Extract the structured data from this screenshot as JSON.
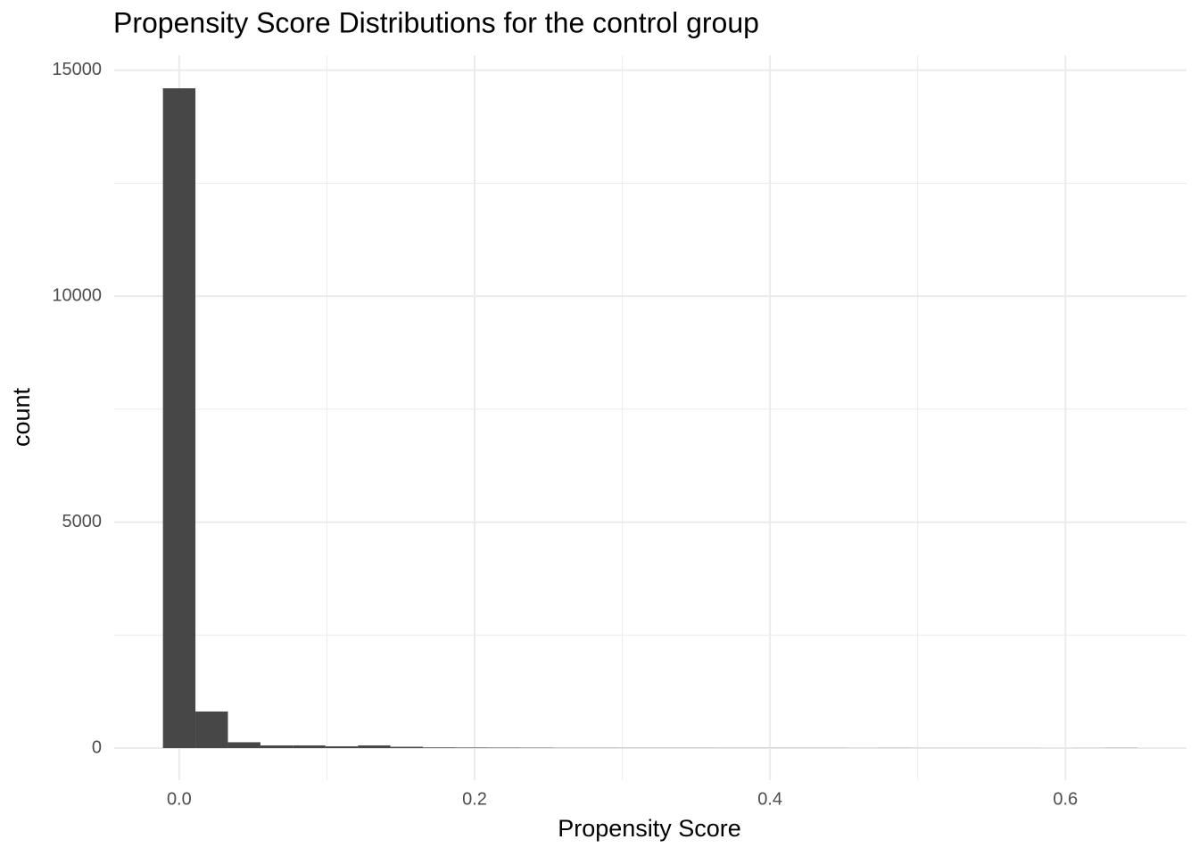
{
  "chart_data": {
    "type": "histogram",
    "title": "Propensity Score Distributions for the control group",
    "x_label": "Propensity Score",
    "y_label": "count",
    "bins": [
      -0.011,
      0.011,
      0.033,
      0.055,
      0.077,
      0.099,
      0.121,
      0.143,
      0.165,
      0.187,
      0.209,
      0.231,
      0.253,
      0.275,
      0.297,
      0.319,
      0.341,
      0.363,
      0.385,
      0.407,
      0.429,
      0.451,
      0.473,
      0.495,
      0.517,
      0.539,
      0.561,
      0.583,
      0.605,
      0.627,
      0.649
    ],
    "counts": [
      14600,
      810,
      130,
      60,
      60,
      40,
      60,
      30,
      15,
      12,
      10,
      8,
      5,
      5,
      4,
      4,
      4,
      3,
      3,
      3,
      3,
      2,
      3,
      2,
      2,
      2,
      2,
      1,
      2,
      4
    ],
    "color": "#474747",
    "xlim": [
      -0.044,
      0.682
    ],
    "ylim": [
      -710,
      15330
    ],
    "xticks": [
      {
        "value": 0,
        "label": "0.0"
      },
      0.2,
      0.4,
      0.6
    ],
    "yticks": [
      0,
      5000,
      10000,
      15000
    ],
    "xminor": [
      0.1,
      0.3,
      0.5
    ],
    "yminor": [
      2500,
      7500,
      12500
    ],
    "grid": true
  }
}
